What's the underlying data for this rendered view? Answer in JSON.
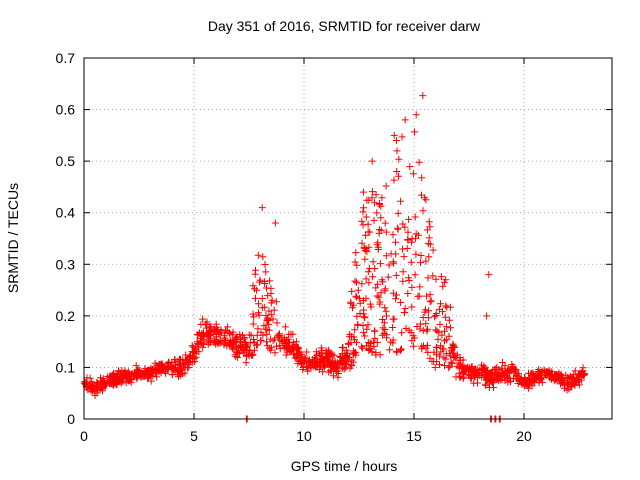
{
  "chart_data": {
    "type": "scatter",
    "title": "Day 351 of 2016, SRMTID for receiver darw",
    "xlabel": "GPS time / hours",
    "ylabel": "SRMTID / TECUs",
    "xlim": [
      0,
      24
    ],
    "ylim": [
      0,
      0.7
    ],
    "xticks": [
      0,
      5,
      10,
      15,
      20
    ],
    "xtick_labels": [
      "0",
      "5",
      "10",
      "15",
      "20"
    ],
    "yticks": [
      0,
      0.1,
      0.2,
      0.3,
      0.4,
      0.5,
      0.6,
      0.7
    ],
    "ytick_labels": [
      "0",
      "0.1",
      "0.2",
      "0.3",
      "0.4",
      "0.5",
      "0.6",
      "0.7"
    ],
    "grid": true,
    "marker": "+",
    "color": "#ff0000",
    "series": [
      {
        "name": "SRMTID",
        "envelope_x": [
          0.0,
          0.5,
          1,
          1.5,
          2,
          2.5,
          3,
          3.5,
          4,
          4.5,
          5,
          5.5,
          6,
          6.5,
          7,
          7.5,
          8,
          8.5,
          9,
          9.5,
          10,
          10.5,
          11,
          11.5,
          12,
          12.5,
          13,
          13.5,
          14,
          14.5,
          15,
          15.5,
          16,
          16.5,
          17,
          17.5,
          18,
          18.5,
          19,
          19.5,
          20,
          20.5,
          21,
          21.5,
          22,
          22.5,
          22.8
        ],
        "envelope_mean": [
          0.07,
          0.06,
          0.07,
          0.08,
          0.08,
          0.09,
          0.09,
          0.1,
          0.1,
          0.1,
          0.13,
          0.17,
          0.16,
          0.16,
          0.14,
          0.14,
          0.22,
          0.18,
          0.15,
          0.14,
          0.11,
          0.11,
          0.12,
          0.1,
          0.12,
          0.22,
          0.24,
          0.22,
          0.25,
          0.27,
          0.28,
          0.24,
          0.16,
          0.16,
          0.1,
          0.09,
          0.09,
          0.08,
          0.09,
          0.09,
          0.07,
          0.08,
          0.09,
          0.08,
          0.07,
          0.08,
          0.09
        ],
        "envelope_spread": [
          0.04,
          0.04,
          0.04,
          0.04,
          0.04,
          0.04,
          0.04,
          0.04,
          0.04,
          0.05,
          0.07,
          0.09,
          0.08,
          0.07,
          0.06,
          0.08,
          0.17,
          0.12,
          0.08,
          0.08,
          0.06,
          0.06,
          0.07,
          0.06,
          0.08,
          0.22,
          0.27,
          0.26,
          0.33,
          0.35,
          0.36,
          0.26,
          0.16,
          0.14,
          0.06,
          0.05,
          0.06,
          0.05,
          0.05,
          0.05,
          0.04,
          0.04,
          0.04,
          0.04,
          0.04,
          0.04,
          0.04
        ],
        "x_range": [
          0.0,
          22.8
        ],
        "outlier_points": [
          [
            15.4,
            0.627
          ],
          [
            15.1,
            0.59
          ],
          [
            14.6,
            0.58
          ],
          [
            14.1,
            0.55
          ],
          [
            14.2,
            0.54
          ],
          [
            13.1,
            0.5
          ],
          [
            12.7,
            0.44
          ],
          [
            8.1,
            0.41
          ],
          [
            8.7,
            0.38
          ],
          [
            18.4,
            0.28
          ],
          [
            18.3,
            0.2
          ]
        ],
        "zero_points": [
          [
            7.4,
            0.0
          ],
          [
            18.5,
            0.0
          ],
          [
            18.7,
            0.0
          ],
          [
            18.9,
            0.0
          ]
        ]
      }
    ]
  }
}
